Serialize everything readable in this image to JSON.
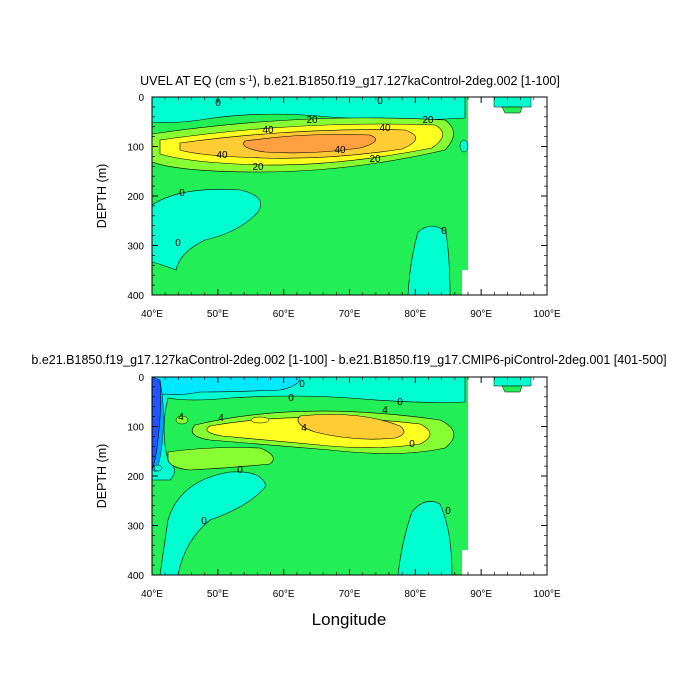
{
  "figure": {
    "x_axis_label": "Longitude"
  },
  "colors": {
    "land": "#ffffff",
    "zero_band": "#22ee55",
    "neg_band": "#00ffd0",
    "neg_band2": "#00e8ff",
    "pos_band1": "#88ff33",
    "pos_band2": "#ffff22",
    "pos_band3": "#ffcc33",
    "pos_band4": "#ffa040",
    "strong_neg": "#2255ff",
    "contour_line": "#000000"
  },
  "chart_data": [
    {
      "type": "contour",
      "title_text": "UVEL AT EQ (cm s",
      "title_superscript": "-1",
      "title_suffix": "), b.e21.B1850.f19_g17.127kaControl-2deg.002 [1-100]",
      "xlabel": "",
      "ylabel": "DEPTH (m)",
      "xlim": [
        40,
        100
      ],
      "ylim": [
        400,
        0
      ],
      "x_ticks": [
        40,
        50,
        60,
        70,
        80,
        90,
        100
      ],
      "x_tick_labels": [
        "40°E",
        "50°E",
        "60°E",
        "70°E",
        "80°E",
        "90°E",
        "100°E"
      ],
      "y_ticks": [
        0,
        100,
        200,
        300,
        400
      ],
      "y_tick_labels": [
        "0",
        "100",
        "200",
        "300",
        "400"
      ],
      "contour_labels": [
        "0",
        "0",
        "20",
        "20",
        "40",
        "40",
        "40",
        "40",
        "20",
        "20",
        "0",
        "0",
        "0"
      ]
    },
    {
      "type": "contour",
      "title_text": "b.e21.B1850.f19_g17.127kaControl-2deg.002 [1-100] - b.e21.B1850.f19_g17.CMIP6-piControl-2deg.001 [401-500]",
      "xlabel": "Longitude",
      "ylabel": "DEPTH (m)",
      "xlim": [
        40,
        100
      ],
      "ylim": [
        400,
        0
      ],
      "x_ticks": [
        40,
        50,
        60,
        70,
        80,
        90,
        100
      ],
      "x_tick_labels": [
        "40°E",
        "50°E",
        "60°E",
        "70°E",
        "80°E",
        "90°E",
        "100°E"
      ],
      "y_ticks": [
        0,
        100,
        200,
        300,
        400
      ],
      "y_tick_labels": [
        "0",
        "100",
        "200",
        "300",
        "400"
      ],
      "contour_labels": [
        "0",
        "0",
        "0",
        "4",
        "4",
        "4",
        "4",
        "0",
        "0",
        "0",
        "0"
      ]
    }
  ]
}
